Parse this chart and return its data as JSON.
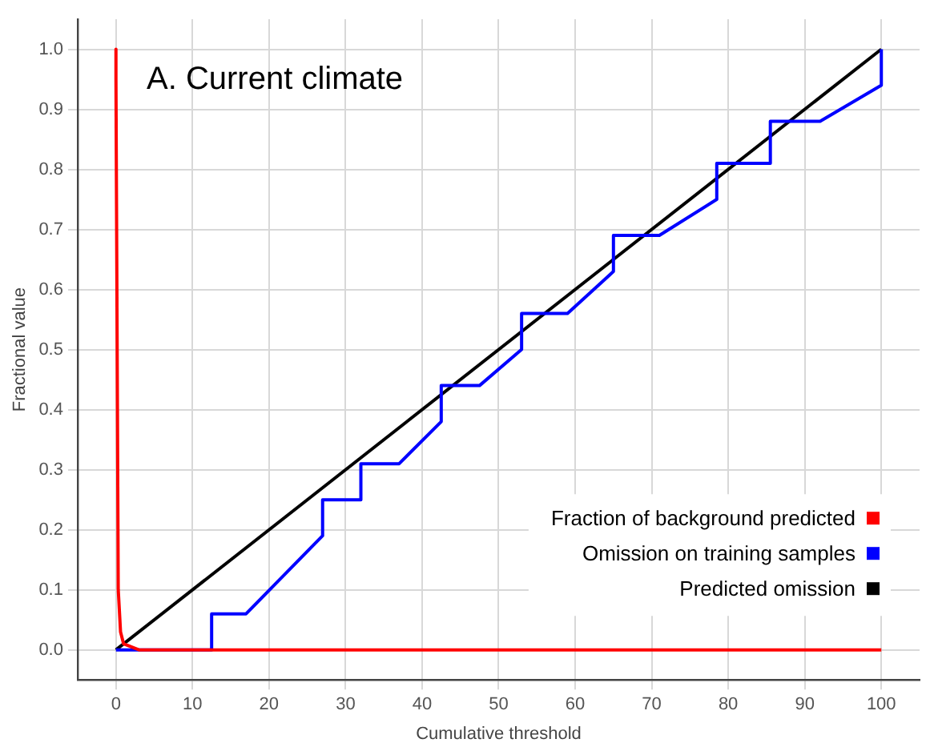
{
  "chart_data": {
    "type": "line",
    "xlabel": "Cumulative threshold",
    "ylabel": "Fractional value",
    "annotations": [
      "A. Current climate"
    ],
    "xlim": [
      -5,
      105
    ],
    "xticks": [
      0,
      10,
      20,
      30,
      40,
      50,
      60,
      70,
      80,
      90,
      100
    ],
    "ylim": [
      -0.05,
      1.05
    ],
    "yticks": [
      {
        "value": 0,
        "label": "0.0"
      },
      0.1,
      0.2,
      0.3,
      0.4,
      0.5,
      0.6,
      0.7,
      0.8,
      0.9,
      {
        "value": 1,
        "label": "1.0"
      }
    ],
    "grid": true,
    "legend": "bottom right",
    "marker": "none",
    "line_style": "solid",
    "series": [
      {
        "name": "Fraction of background predicted",
        "color": "#ff0000",
        "x": [
          0,
          0,
          0.3,
          0.6,
          1,
          3,
          100
        ],
        "values": [
          1,
          0.95,
          0.1,
          0.03,
          0.01,
          0,
          0
        ]
      },
      {
        "name": "Omission on training samples",
        "color": "#0000ff",
        "x": [
          0,
          12.5,
          12.5,
          17,
          27,
          27,
          32,
          32,
          37,
          42.5,
          42.5,
          47.5,
          53,
          53,
          59,
          65,
          65,
          71,
          78.5,
          78.5,
          85.5,
          85.5,
          92,
          100,
          100
        ],
        "values": [
          0,
          0,
          0.06,
          0.06,
          0.19,
          0.25,
          0.25,
          0.31,
          0.31,
          0.38,
          0.44,
          0.44,
          0.5,
          0.56,
          0.56,
          0.63,
          0.69,
          0.69,
          0.75,
          0.81,
          0.81,
          0.88,
          0.88,
          0.94,
          1
        ]
      },
      {
        "name": "Predicted omission",
        "color": "#000000",
        "x": [
          0,
          100
        ],
        "values": [
          0,
          1
        ]
      }
    ]
  }
}
